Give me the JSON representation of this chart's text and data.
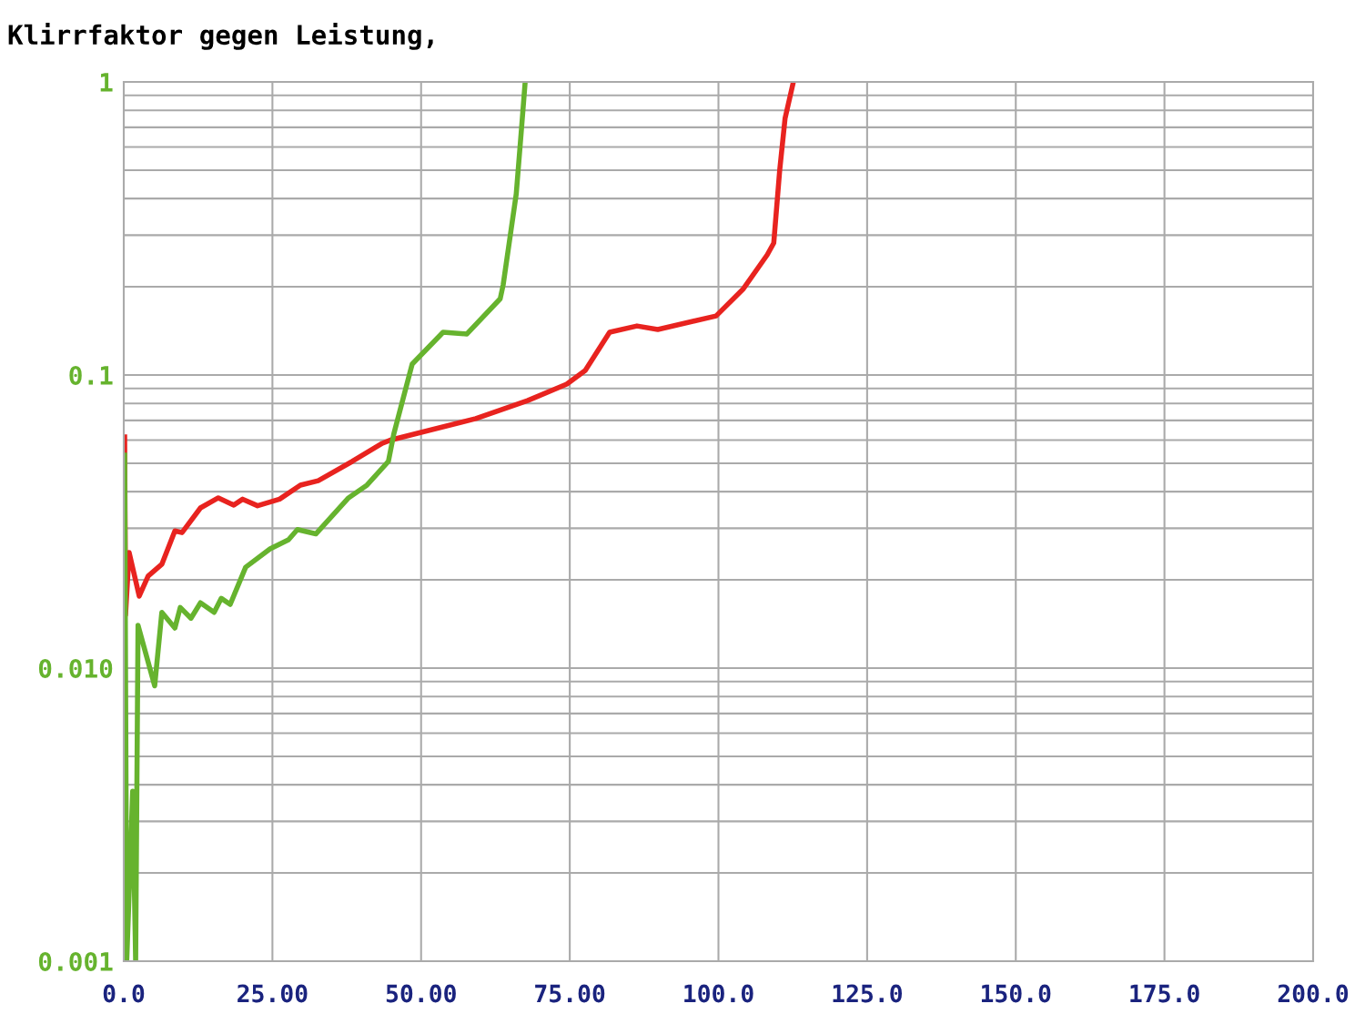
{
  "chart_data": {
    "type": "line",
    "title": "Klirrfaktor gegen Leistung,",
    "xlim": [
      0,
      200
    ],
    "xticks": [
      {
        "value": 0,
        "label": "0.0"
      },
      {
        "value": 25,
        "label": "25.00"
      },
      {
        "value": 50,
        "label": "50.00"
      },
      {
        "value": 75,
        "label": "75.00"
      },
      {
        "value": 100,
        "label": "100.0"
      },
      {
        "value": 125,
        "label": "125.0"
      },
      {
        "value": 150,
        "label": "150.0"
      },
      {
        "value": 175,
        "label": "175.0"
      },
      {
        "value": 200,
        "label": "200.0"
      }
    ],
    "ylim": [
      0.001,
      1
    ],
    "yticks": [
      {
        "value": 0.001,
        "label": "0.001"
      },
      {
        "value": 0.01,
        "label": "0.010"
      },
      {
        "value": 0.1,
        "label": "0.1"
      },
      1
    ],
    "log": "y",
    "grid": true,
    "marker": "none",
    "line_style": "solid",
    "series": [
      {
        "color": "#e8231f",
        "x": [
          0.15,
          0.3,
          0.9,
          2.6,
          4.1,
          6.4,
          8.6,
          9.8,
          12.9,
          15.9,
          18.5,
          20.0,
          22.5,
          26.2,
          29.7,
          32.7,
          38.4,
          43.5,
          45,
          50,
          59.2,
          67.9,
          74.5,
          77.6,
          81.7,
          86.3,
          89.8,
          99.6,
          104.2,
          108.2,
          109.3,
          110.3,
          111.2,
          112.6
        ],
        "values": [
          0.0615,
          0.0152,
          0.0248,
          0.0176,
          0.0206,
          0.0226,
          0.0294,
          0.029,
          0.0352,
          0.0381,
          0.036,
          0.0377,
          0.0358,
          0.0377,
          0.0421,
          0.0436,
          0.0507,
          0.0585,
          0.0601,
          0.0637,
          0.071,
          0.0818,
          0.0931,
          0.1037,
          0.14,
          0.147,
          0.143,
          0.159,
          0.197,
          0.257,
          0.282,
          0.5,
          0.75,
          1.0
        ]
      },
      {
        "color": "#66b32e",
        "x": [
          0.15,
          0.5,
          1.5,
          2.0,
          2.4,
          5.2,
          6.4,
          8.6,
          9.5,
          11.3,
          12.9,
          15.2,
          16.4,
          17.9,
          20.5,
          24.6,
          27.7,
          29.2,
          32.3,
          37.8,
          40.9,
          44.5,
          45.4,
          48.5,
          53.7,
          57.7,
          63.3,
          63.8,
          66,
          66.9,
          67.5
        ],
        "values": [
          0.0533,
          0.001,
          0.0038,
          0.001,
          0.014,
          0.0087,
          0.0155,
          0.0137,
          0.0161,
          0.0148,
          0.0167,
          0.0155,
          0.0173,
          0.0165,
          0.0221,
          0.0255,
          0.0274,
          0.0297,
          0.0287,
          0.0381,
          0.0421,
          0.0507,
          0.0628,
          0.109,
          0.14,
          0.138,
          0.182,
          0.203,
          0.415,
          0.7,
          1.0
        ]
      }
    ]
  }
}
